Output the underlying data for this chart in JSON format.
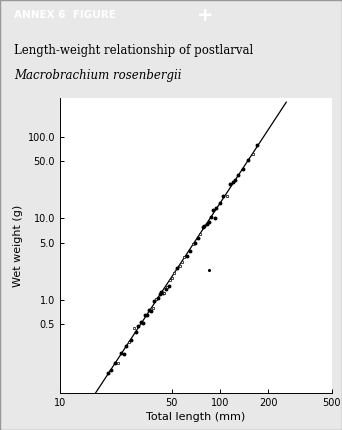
{
  "header_text": "ANNEX 6  FIGURE",
  "header_bg": "#2d6b6b",
  "header_text_color": "#ffffff",
  "header_symbol": "➕",
  "title_line1": "Length-weight relationship of postlarval",
  "title_line2_italic": "Macrobrachium rosenbergii",
  "title_bg": "#eef0c8",
  "xlabel": "Total length (mm)",
  "ylabel": "Wet weight (g)",
  "xlim": [
    10,
    500
  ],
  "ylim": [
    0.07,
    300
  ],
  "xticks": [
    10,
    50,
    100,
    200,
    500
  ],
  "xtick_labels": [
    "10",
    "50",
    "100",
    "200",
    "500"
  ],
  "yticks": [
    0.5,
    1.0,
    5.0,
    10.0,
    50.0,
    100.0
  ],
  "ytick_labels": [
    "0.5",
    "1.0",
    "5.0",
    "10.0",
    "50.0",
    "100.0"
  ],
  "line_color": "#000000",
  "dot_color": "#000000",
  "bg_color": "#ffffff",
  "a_coeff": 1.52e-05,
  "b_coeff": 3.0,
  "scatter_seed": 12,
  "scatter_x_base": [
    20,
    21,
    22,
    23,
    24,
    25,
    26,
    27,
    28,
    29,
    30,
    31,
    32,
    33,
    34,
    35,
    36,
    37,
    38,
    39,
    40,
    41,
    42,
    43,
    44,
    45,
    46,
    47,
    48,
    49,
    50,
    52,
    54,
    56,
    58,
    60,
    62,
    65,
    68,
    70,
    73,
    75,
    78,
    80,
    83,
    85,
    88,
    90,
    93,
    95,
    100,
    105,
    110,
    115,
    120,
    125,
    130,
    140,
    150,
    160,
    170
  ],
  "noise_sigma": 0.06,
  "lone_point_x": 85,
  "lone_point_y_factor": 0.25
}
